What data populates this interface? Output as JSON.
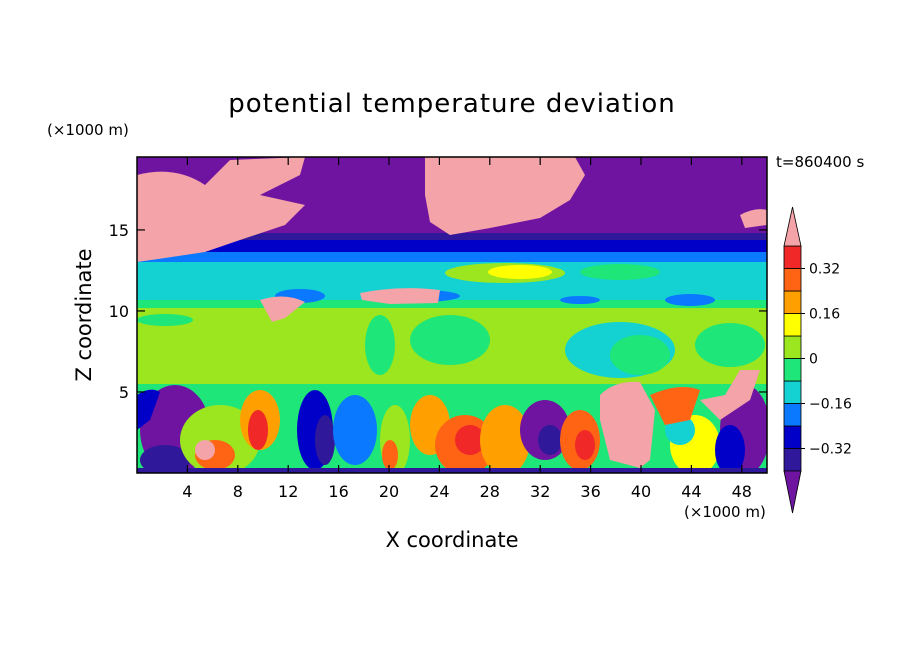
{
  "chart_data": {
    "type": "heatmap",
    "title": "potential temperature deviation",
    "xlabel": "X coordinate",
    "ylabel": "Z coordinate",
    "x_unit": "(×1000 m)",
    "y_unit": "(×1000 m)",
    "time_label": "t=860400 s",
    "xlim": [
      0,
      50
    ],
    "ylim": [
      0,
      19.5
    ],
    "x_ticks": [
      4,
      8,
      12,
      16,
      20,
      24,
      28,
      32,
      36,
      40,
      44,
      48
    ],
    "y_ticks": [
      5,
      10,
      15
    ],
    "grid": false,
    "colorbar": {
      "placement": "right",
      "levels": [
        -0.4,
        -0.32,
        -0.24,
        -0.16,
        -0.08,
        0,
        0.08,
        0.16,
        0.24,
        0.32,
        0.4
      ],
      "tick_labels": [
        "0.32",
        "0.16",
        "0",
        "−0.16",
        "−0.32"
      ],
      "tick_values": [
        0.32,
        0.16,
        0,
        -0.16,
        -0.32
      ],
      "colors": {
        "above_max": "#f4a3a8",
        "c9": "#f02828",
        "c8": "#ff6414",
        "c7": "#ffa000",
        "c6": "#ffff00",
        "c5": "#9be61e",
        "c4": "#1ee678",
        "c3": "#14d2d2",
        "c2": "#0a78ff",
        "c1": "#0000c8",
        "c0": "#30189a",
        "below_min": "#6e14a0"
      }
    },
    "field_description_regions": [
      {
        "region": "upper layer (z 13.5–19.5)",
        "dominant": "below_min",
        "features": "above_max patches near x 0–14 and x 23–37, z 15–19.5"
      },
      {
        "region": "tropopause band (z 13–14)",
        "dominant": "c1"
      },
      {
        "region": "z 11–13",
        "dominant": "c3",
        "features": "c5/c6 patch near x 28–36"
      },
      {
        "region": "z 5.5–10",
        "dominant": "c5"
      },
      {
        "region": "lower layer (z 0–5.5)",
        "dominant": "mixed c0–c9",
        "features": "above_max plume near x 37–45"
      }
    ]
  }
}
